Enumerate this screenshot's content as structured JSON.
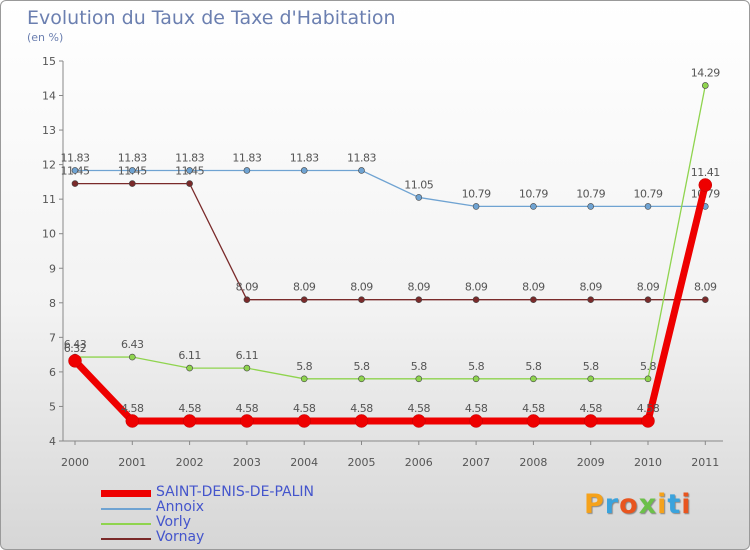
{
  "chart_data": {
    "type": "line",
    "title": "Evolution du Taux de Taxe d'Habitation",
    "ylabel": "(en %)",
    "xlabel": "",
    "x": [
      "2000",
      "2001",
      "2002",
      "2003",
      "2004",
      "2005",
      "2006",
      "2007",
      "2008",
      "2009",
      "2010",
      "2011"
    ],
    "ylim": [
      4,
      15
    ],
    "yticks": [
      "4",
      "5",
      "6",
      "7",
      "8",
      "9",
      "10",
      "11",
      "12",
      "13",
      "14",
      "15"
    ],
    "grid": false,
    "legend_position": "bottom-left",
    "series": [
      {
        "name": "Annoix",
        "color": "#6fa3d2",
        "values": [
          11.83,
          11.83,
          11.83,
          11.83,
          11.83,
          11.83,
          11.05,
          10.79,
          10.79,
          10.79,
          10.79,
          10.79
        ],
        "labels": [
          "11.83",
          "11.83",
          "11.83",
          "11.83",
          "11.83",
          "11.83",
          "11.05",
          "10.79",
          "10.79",
          "10.79",
          "10.79",
          "10.79"
        ]
      },
      {
        "name": "Vornay",
        "color": "#7a2a2a",
        "values": [
          11.45,
          11.45,
          11.45,
          8.09,
          8.09,
          8.09,
          8.09,
          8.09,
          8.09,
          8.09,
          8.09,
          8.09
        ],
        "labels": [
          "11.45",
          "11.45",
          "11.45",
          "8.09",
          "8.09",
          "8.09",
          "8.09",
          "8.09",
          "8.09",
          "8.09",
          "8.09",
          "8.09"
        ]
      },
      {
        "name": "Vorly",
        "color": "#8fd44e",
        "values": [
          6.43,
          6.43,
          6.11,
          6.11,
          5.8,
          5.8,
          5.8,
          5.8,
          5.8,
          5.8,
          5.8,
          14.29
        ],
        "labels": [
          "6.43",
          "6.43",
          "6.11",
          "6.11",
          "5.8",
          "5.8",
          "5.8",
          "5.8",
          "5.8",
          "5.8",
          "5.8",
          "14.29"
        ]
      },
      {
        "name": "SAINT-DENIS-DE-PALIN",
        "color": "#ee0000",
        "values": [
          6.32,
          4.58,
          4.58,
          4.58,
          4.58,
          4.58,
          4.58,
          4.58,
          4.58,
          4.58,
          4.58,
          11.41
        ],
        "labels": [
          "6.32",
          "4.58",
          "4.58",
          "4.58",
          "4.58",
          "4.58",
          "4.58",
          "4.58",
          "4.58",
          "4.58",
          "4.58",
          "11.41"
        ]
      }
    ],
    "legend_order": [
      "SAINT-DENIS-DE-PALIN",
      "Annoix",
      "Vorly",
      "Vornay"
    ]
  },
  "logo": {
    "text": "Proxiti",
    "colors": [
      "#f5a21b",
      "#3aa3dd",
      "#e8551f",
      "#6cc04a",
      "#f5a21b",
      "#3aa3dd",
      "#e8551f"
    ]
  }
}
